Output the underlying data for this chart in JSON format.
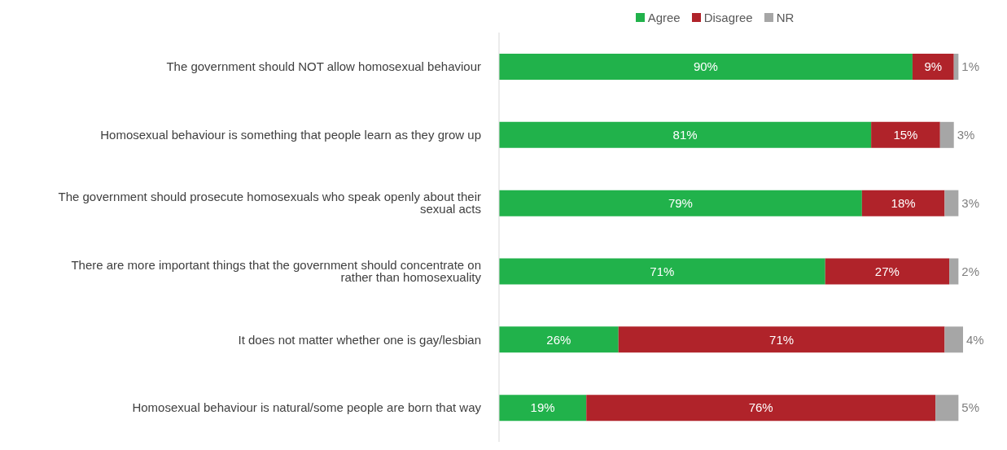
{
  "chart_data": {
    "type": "bar",
    "orientation": "horizontal",
    "stacked": true,
    "legend": "top",
    "tick_labels": "y",
    "xlim": [
      0,
      101
    ],
    "categories": [
      "The government should NOT allow homosexual behaviour",
      "Homosexual behaviour is something that people learn as they grow up",
      "The government should prosecute homosexuals who speak openly about their sexual acts",
      "There are more important things that the government should concentrate on rather than homosexuality",
      "It does not matter whether one is gay/lesbian",
      "Homosexual behaviour is natural/some people are born that way"
    ],
    "series": [
      {
        "name": "Agree",
        "color": "#21b24b",
        "values": [
          90,
          81,
          79,
          71,
          26,
          19
        ],
        "value_labels": [
          "90%",
          "81%",
          "79%",
          "71%",
          "26%",
          "19%"
        ]
      },
      {
        "name": "Disagree",
        "color": "#b0232a",
        "values": [
          9,
          15,
          18,
          27,
          71,
          76
        ],
        "value_labels": [
          "9%",
          "15%",
          "18%",
          "27%",
          "71%",
          "76%"
        ]
      },
      {
        "name": "NR",
        "color": "#a6a6a6",
        "values": [
          1,
          3,
          3,
          2,
          4,
          5
        ],
        "value_labels": [
          "1%",
          "3%",
          "3%",
          "2%",
          "4%",
          "5%"
        ]
      }
    ]
  }
}
